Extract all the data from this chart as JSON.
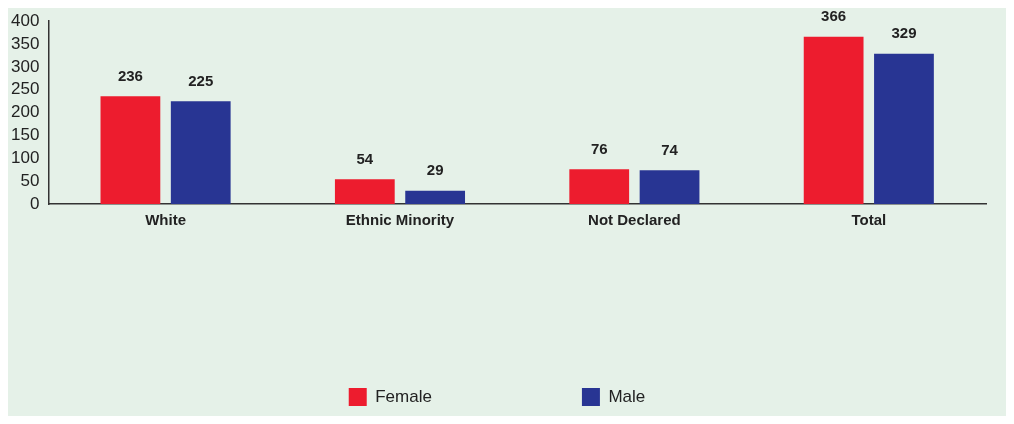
{
  "chart_data": {
    "type": "bar",
    "categories": [
      "White",
      "Ethnic Minority",
      "Not Declared",
      "Total"
    ],
    "series": [
      {
        "name": "Female",
        "color": "#ed1c2e",
        "values": [
          236,
          54,
          76,
          366
        ]
      },
      {
        "name": "Male",
        "color": "#283593",
        "values": [
          225,
          29,
          74,
          329
        ]
      }
    ],
    "ylim": [
      0,
      400
    ],
    "yticks": [
      0,
      50,
      100,
      150,
      200,
      250,
      300,
      350,
      400
    ],
    "grid": false,
    "legend": "bottom",
    "data_labels": true
  }
}
